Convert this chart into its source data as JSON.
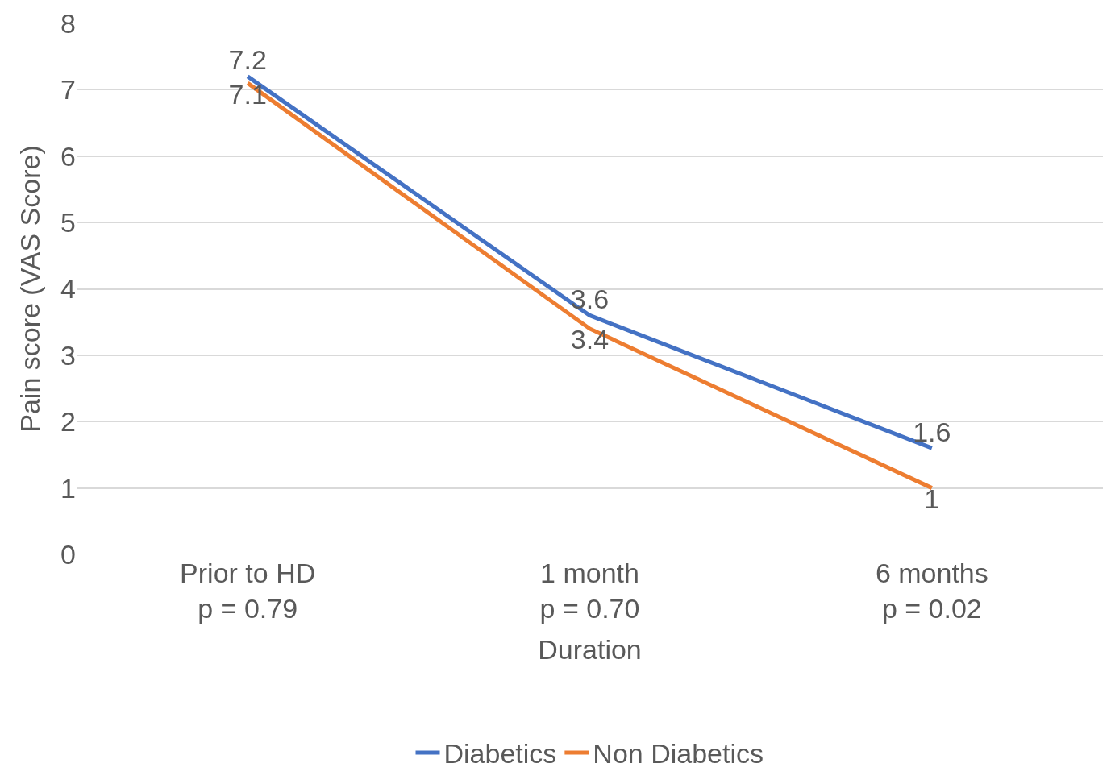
{
  "chart_data": {
    "type": "line",
    "xlabel": "Duration",
    "ylabel": "Pain score (VAS Score)",
    "categories": [
      "Prior to HD\np = 0.79",
      "1 month\np = 0.70",
      "6 months\np = 0.02"
    ],
    "series": [
      {
        "name": "Diabetics",
        "color": "#4472c4",
        "values": [
          7.2,
          3.6,
          1.6
        ]
      },
      {
        "name": "Non Diabetics",
        "color": "#ed7d31",
        "values": [
          7.1,
          3.4,
          1
        ]
      }
    ],
    "ylim": [
      0,
      8
    ],
    "yticks": [
      0,
      1,
      2,
      3,
      4,
      5,
      6,
      7,
      8
    ],
    "grid": "y",
    "legend": "bottom",
    "data_labels": true,
    "marker": "none",
    "line_style": "solid"
  }
}
